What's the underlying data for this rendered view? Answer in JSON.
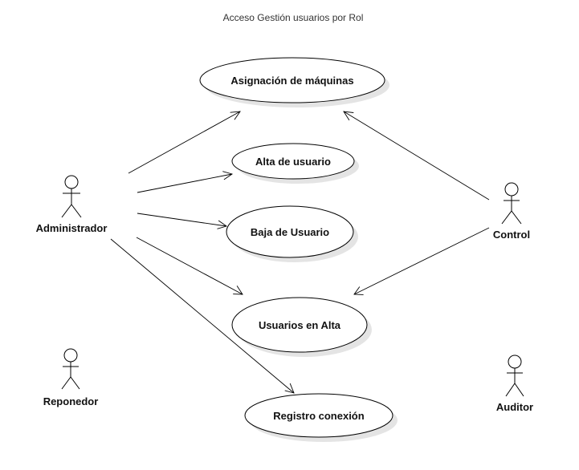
{
  "diagram": {
    "title": "Acceso Gestión usuarios por Rol",
    "actors": [
      {
        "id": "administrador",
        "label": "Administrador"
      },
      {
        "id": "control",
        "label": "Control"
      },
      {
        "id": "reponedor",
        "label": "Reponedor"
      },
      {
        "id": "auditor",
        "label": "Auditor"
      }
    ],
    "use_cases": [
      {
        "id": "asignacion",
        "label": "Asignación de máquinas"
      },
      {
        "id": "alta",
        "label": "Alta de usuario"
      },
      {
        "id": "baja",
        "label": "Baja de Usuario"
      },
      {
        "id": "usuarios-alta",
        "label": "Usuarios en Alta"
      },
      {
        "id": "registro",
        "label": "Registro conexión"
      }
    ],
    "associations": [
      {
        "from": "administrador",
        "to": "asignacion"
      },
      {
        "from": "administrador",
        "to": "alta"
      },
      {
        "from": "administrador",
        "to": "baja"
      },
      {
        "from": "administrador",
        "to": "usuarios-alta"
      },
      {
        "from": "administrador",
        "to": "registro"
      },
      {
        "from": "control",
        "to": "asignacion"
      },
      {
        "from": "control",
        "to": "usuarios-alta"
      }
    ],
    "colors": {
      "stroke": "#000000",
      "fill": "#ffffff",
      "shadow": "#e4e4e4",
      "title": "#333333"
    }
  }
}
